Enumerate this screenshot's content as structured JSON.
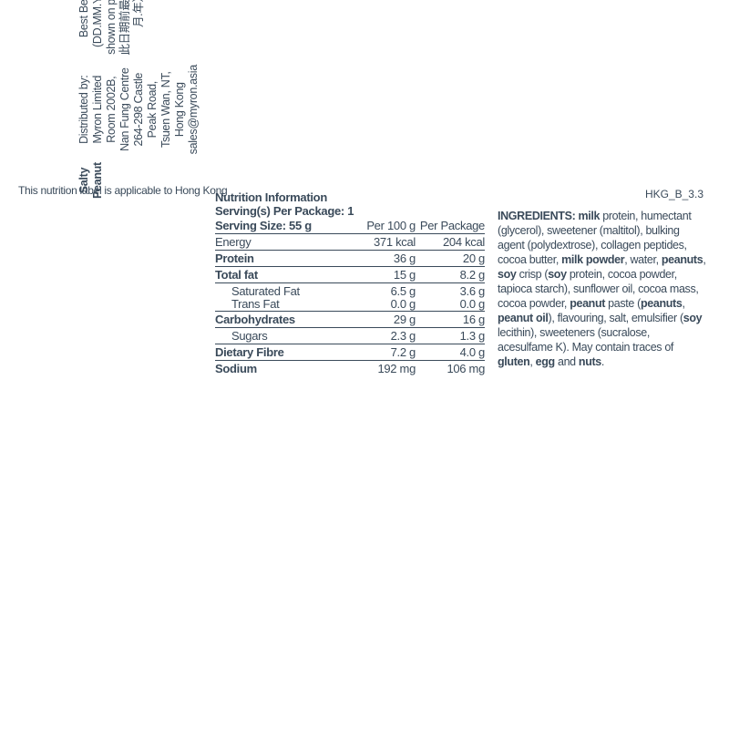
{
  "top_note": "This nutrition label is applicable to Hong Kong",
  "code": "HKG_B_3.3",
  "left": {
    "product": "Salty Peanut",
    "dist1": "Distributed by: Myron Limited Room 2002B,",
    "dist2": "Nan Fung Centre 264-298 Castle Peak Road,",
    "dist3": "Tsuen Wan, NT, Hong Kong",
    "email": "sales@myron.asia",
    "bb1": "Best Before (DD.MM.YY) as shown on package",
    "bb2": "此日期前最佳（日.月.年）"
  },
  "nutrition": {
    "title": "Nutrition Information",
    "servings_per_pkg": "Serving(s) Per Package: 1",
    "serving_size": "Serving Size: 55 g",
    "col2": "Per 100 g",
    "col3": "Per Package",
    "rows": {
      "energy": {
        "label": "Energy",
        "v1": "371 kcal",
        "v2": "204 kcal"
      },
      "protein": {
        "label": "Protein",
        "v1": "36 g",
        "v2": "20 g"
      },
      "totalfat": {
        "label": "Total fat",
        "v1": "15 g",
        "v2": "8.2 g"
      },
      "satfat": {
        "label": "Saturated Fat",
        "v1": "6.5 g",
        "v2": "3.6 g"
      },
      "transfat": {
        "label": "Trans Fat",
        "v1": "0.0 g",
        "v2": "0.0 g"
      },
      "carbs": {
        "label": "Carbohydrates",
        "v1": "29 g",
        "v2": "16 g"
      },
      "sugars": {
        "label": "Sugars",
        "v1": "2.3 g",
        "v2": "1.3 g"
      },
      "fibre": {
        "label": "Dietary Fibre",
        "v1": "7.2 g",
        "v2": "4.0 g"
      },
      "sodium": {
        "label": "Sodium",
        "v1": "192 mg",
        "v2": "106 mg"
      }
    }
  },
  "ingredients": {
    "lead": "INGREDIENTS:",
    "body_html": "<b>milk</b> protein, humectant (glycerol), sweetener (maltitol), bulking agent (polydextrose), collagen peptides, cocoa butter, <b>milk powder</b>, water, <b>peanuts</b>, <b>soy</b> crisp (<b>soy</b> protein, cocoa powder, tapioca starch), sunflower oil, cocoa mass, cocoa powder, <b>peanut</b> paste (<b>peanuts</b>, <b>peanut oil</b>), flavouring, salt, emulsifier (<b>soy</b> lecithin), sweeteners (sucralose, acesulfame K). May contain traces of <b>gluten</b>, <b>egg</b> and <b>nuts</b>."
  }
}
